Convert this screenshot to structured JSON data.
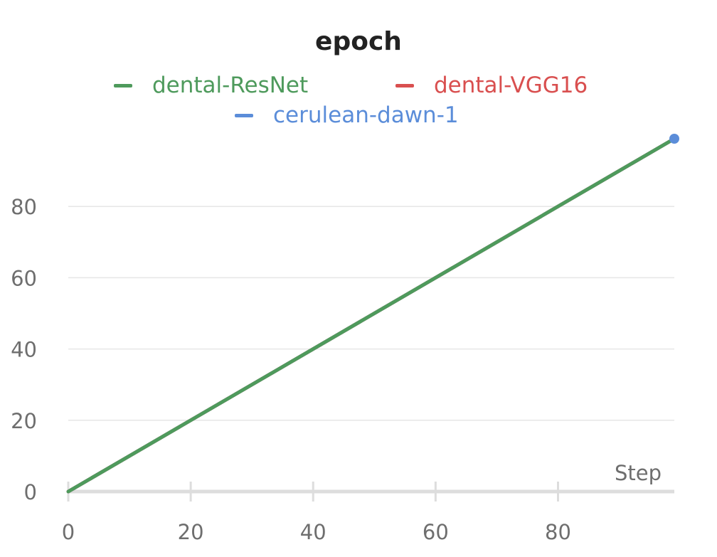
{
  "chart_data": {
    "type": "line",
    "title": "epoch",
    "xlabel": "Step",
    "ylabel": "",
    "xlim": [
      0,
      99
    ],
    "ylim": [
      0,
      100
    ],
    "xticks": [
      0,
      20,
      40,
      60,
      80
    ],
    "yticks": [
      0,
      20,
      40,
      60,
      80
    ],
    "grid": true,
    "legend_position": "top",
    "series": [
      {
        "name": "dental-ResNet",
        "color": "#4e9a5c",
        "x": [
          0,
          99
        ],
        "y": [
          0,
          99
        ]
      },
      {
        "name": "dental-VGG16",
        "color": "#d94f4f",
        "x": [
          0,
          99
        ],
        "y": [
          0,
          99
        ]
      },
      {
        "name": "cerulean-dawn-1",
        "color": "#5b8dd9",
        "x": [
          0,
          99
        ],
        "y": [
          0,
          99
        ]
      }
    ]
  }
}
